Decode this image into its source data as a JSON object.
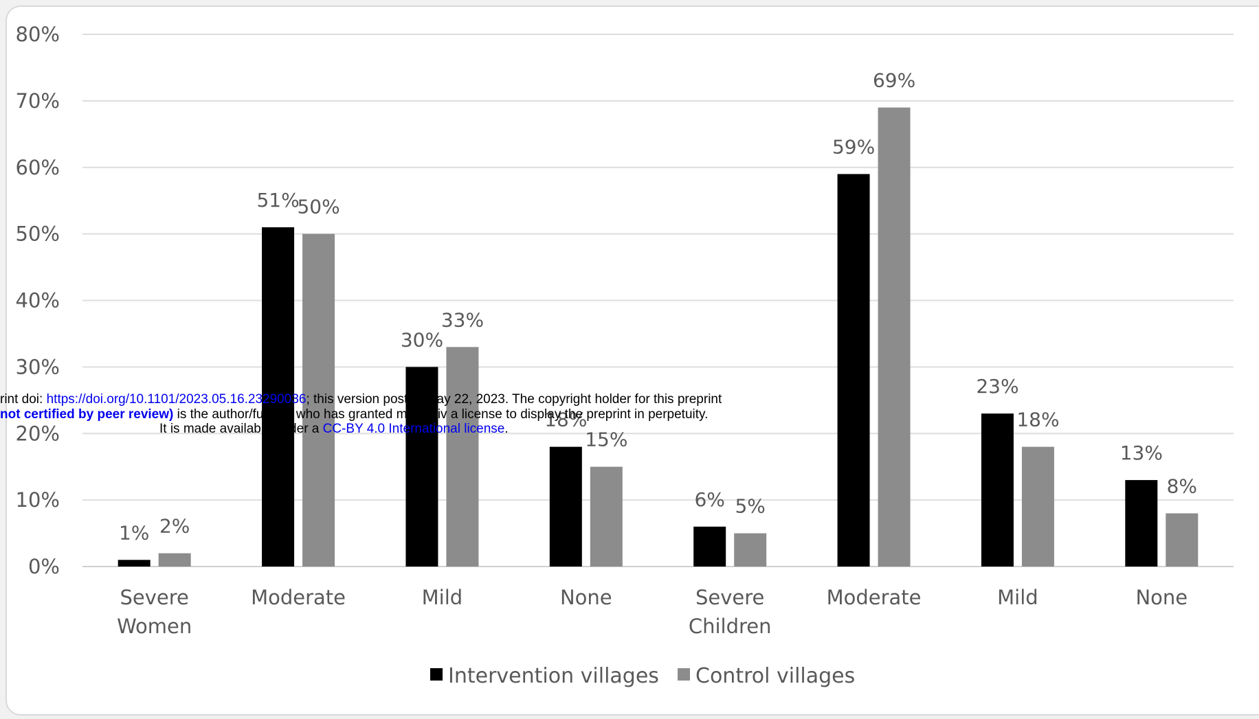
{
  "chart_data": {
    "type": "bar",
    "title": "",
    "xlabel": "",
    "ylabel": "",
    "ylim": [
      0,
      80
    ],
    "yticks": [
      "0%",
      "10%",
      "20%",
      "30%",
      "40%",
      "50%",
      "60%",
      "70%",
      "80%"
    ],
    "grid": true,
    "legend_position": "bottom",
    "categories": [
      "Severe",
      "Moderate",
      "Mild",
      "None",
      "Severe",
      "Moderate",
      "Mild",
      "None"
    ],
    "group_labels": [
      "Women",
      "Children"
    ],
    "series": [
      {
        "name": "Intervention villages",
        "color": "#000000",
        "values": [
          1,
          51,
          30,
          18,
          6,
          59,
          23,
          13
        ],
        "labels": [
          "1%",
          "51%",
          "30%",
          "18%",
          "6%",
          "59%",
          "23%",
          "13%"
        ]
      },
      {
        "name": "Control villages",
        "color": "#8c8c8c",
        "values": [
          2,
          50,
          33,
          15,
          5,
          69,
          18,
          8
        ],
        "labels": [
          "2%",
          "50%",
          "33%",
          "15%",
          "5%",
          "69%",
          "18%",
          "8%"
        ]
      }
    ]
  },
  "watermark": {
    "line1_prefix": "rint doi: ",
    "line1_link": "https://doi.org/10.1101/2023.05.16.23290036",
    "line1_suffix": "; this version posted May 22, 2023. The copyright holder for this preprint",
    "line2_bold": "not certified by peer review)",
    "line2_suffix": " is the author/funder, who has granted medRxiv a license to display the preprint in perpetuity.",
    "line3_prefix": "It is made available under a ",
    "line3_link": "CC-BY 4.0 International license",
    "line3_suffix": "."
  }
}
